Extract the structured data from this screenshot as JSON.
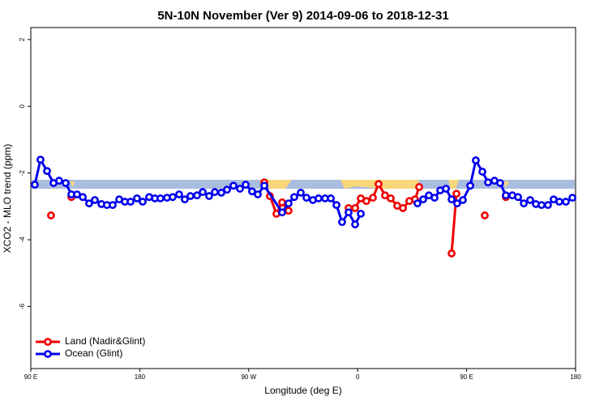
{
  "chart_data": {
    "type": "line",
    "title": "5N-10N November (Ver 9)   2014-09-06 to 2018-12-31",
    "x_label": "Longitude (deg E)",
    "y_label": "XCO2 - MLO trend (ppm)",
    "xlim": [
      90,
      540
    ],
    "xticks": [
      {
        "value": 90,
        "label": "90 E"
      },
      {
        "value": 180,
        "label": "180"
      },
      {
        "value": 270,
        "label": "90 W"
      },
      {
        "value": 360,
        "label": "0"
      },
      {
        "value": 450,
        "label": "90 E"
      },
      {
        "value": 540,
        "label": "180"
      }
    ],
    "ylim": [
      -7.86,
      2.36
    ],
    "yticks": [
      2,
      0,
      -2,
      -4,
      -6
    ],
    "legend": "bottom-left",
    "series": [
      {
        "name": "Land (Nadir&Glint)",
        "color": "#ee0000",
        "x": [
          106.7,
          115,
          123.5,
          200,
          282.9,
          287.5,
          292.9,
          297.6,
          302.9,
          330,
          352.5,
          357.9,
          362.6,
          367.2,
          372.6,
          377.3,
          382.6,
          387.3,
          392.7,
          397.4,
          402.7,
          407.4,
          410.8,
          420,
          437.6,
          441.6,
          455,
          465.0,
          475,
          482.4
        ],
        "values": [
          -3.27,
          null,
          -2.72,
          null,
          -2.28,
          -2.69,
          -3.22,
          -2.88,
          -3.13,
          null,
          -3.05,
          -3.05,
          -2.76,
          -2.84,
          -2.74,
          -2.33,
          -2.67,
          -2.76,
          -2.98,
          -3.05,
          -2.84,
          -2.79,
          -2.42,
          null,
          -4.41,
          -2.62,
          null,
          -3.27,
          null,
          -2.72
        ]
      },
      {
        "name": "Ocean (Glint)",
        "color": "#0000ee",
        "x": [
          93.3,
          98.0,
          103.4,
          108.8,
          113.4,
          118.8,
          123.5,
          128.2,
          132.9,
          138.2,
          142.9,
          148.3,
          152.9,
          157.6,
          163.0,
          167.7,
          172.4,
          177.7,
          182.4,
          187.8,
          192.5,
          197.1,
          202.5,
          207.2,
          212.5,
          217.2,
          221.9,
          227.3,
          232.0,
          237.3,
          242.0,
          247.4,
          252.1,
          257.4,
          262.8,
          267.5,
          272.8,
          277.5,
          282.9,
          297.6,
          302.9,
          307.6,
          313.0,
          317.7,
          323.0,
          327.7,
          333.1,
          337.8,
          342.5,
          347.1,
          352.5,
          357.9,
          362.6,
          385,
          409.4,
          414.1,
          418.8,
          423.5,
          428.2,
          432.9,
          437.6,
          442.2,
          446.9,
          453.0,
          457.6,
          463.0,
          467.7,
          473.0,
          477.7,
          482.4,
          487.8,
          492.5,
          497.2,
          502.5,
          507.2,
          511.9,
          517.2,
          521.9,
          526.6,
          532.0,
          537.4
        ],
        "values": [
          -2.35,
          -1.6,
          -1.94,
          -2.3,
          -2.23,
          -2.3,
          -2.64,
          -2.64,
          -2.72,
          -2.91,
          -2.81,
          -2.93,
          -2.96,
          -2.96,
          -2.79,
          -2.86,
          -2.86,
          -2.76,
          -2.86,
          -2.72,
          -2.76,
          -2.76,
          -2.74,
          -2.72,
          -2.64,
          -2.79,
          -2.69,
          -2.67,
          -2.57,
          -2.69,
          -2.57,
          -2.59,
          -2.5,
          -2.38,
          -2.47,
          -2.35,
          -2.55,
          -2.64,
          -2.38,
          -3.18,
          -2.91,
          -2.72,
          -2.59,
          -2.74,
          -2.81,
          -2.76,
          -2.76,
          -2.76,
          -2.96,
          -3.47,
          -3.18,
          -3.54,
          -3.22,
          null,
          -2.91,
          -2.79,
          -2.67,
          -2.74,
          -2.52,
          -2.47,
          -2.79,
          -2.91,
          -2.81,
          -2.38,
          -1.62,
          -1.96,
          -2.28,
          -2.23,
          -2.3,
          -2.67,
          -2.67,
          -2.72,
          -2.91,
          -2.81,
          -2.93,
          -2.96,
          -2.96,
          -2.79,
          -2.86,
          -2.86,
          -2.74
        ]
      }
    ]
  }
}
